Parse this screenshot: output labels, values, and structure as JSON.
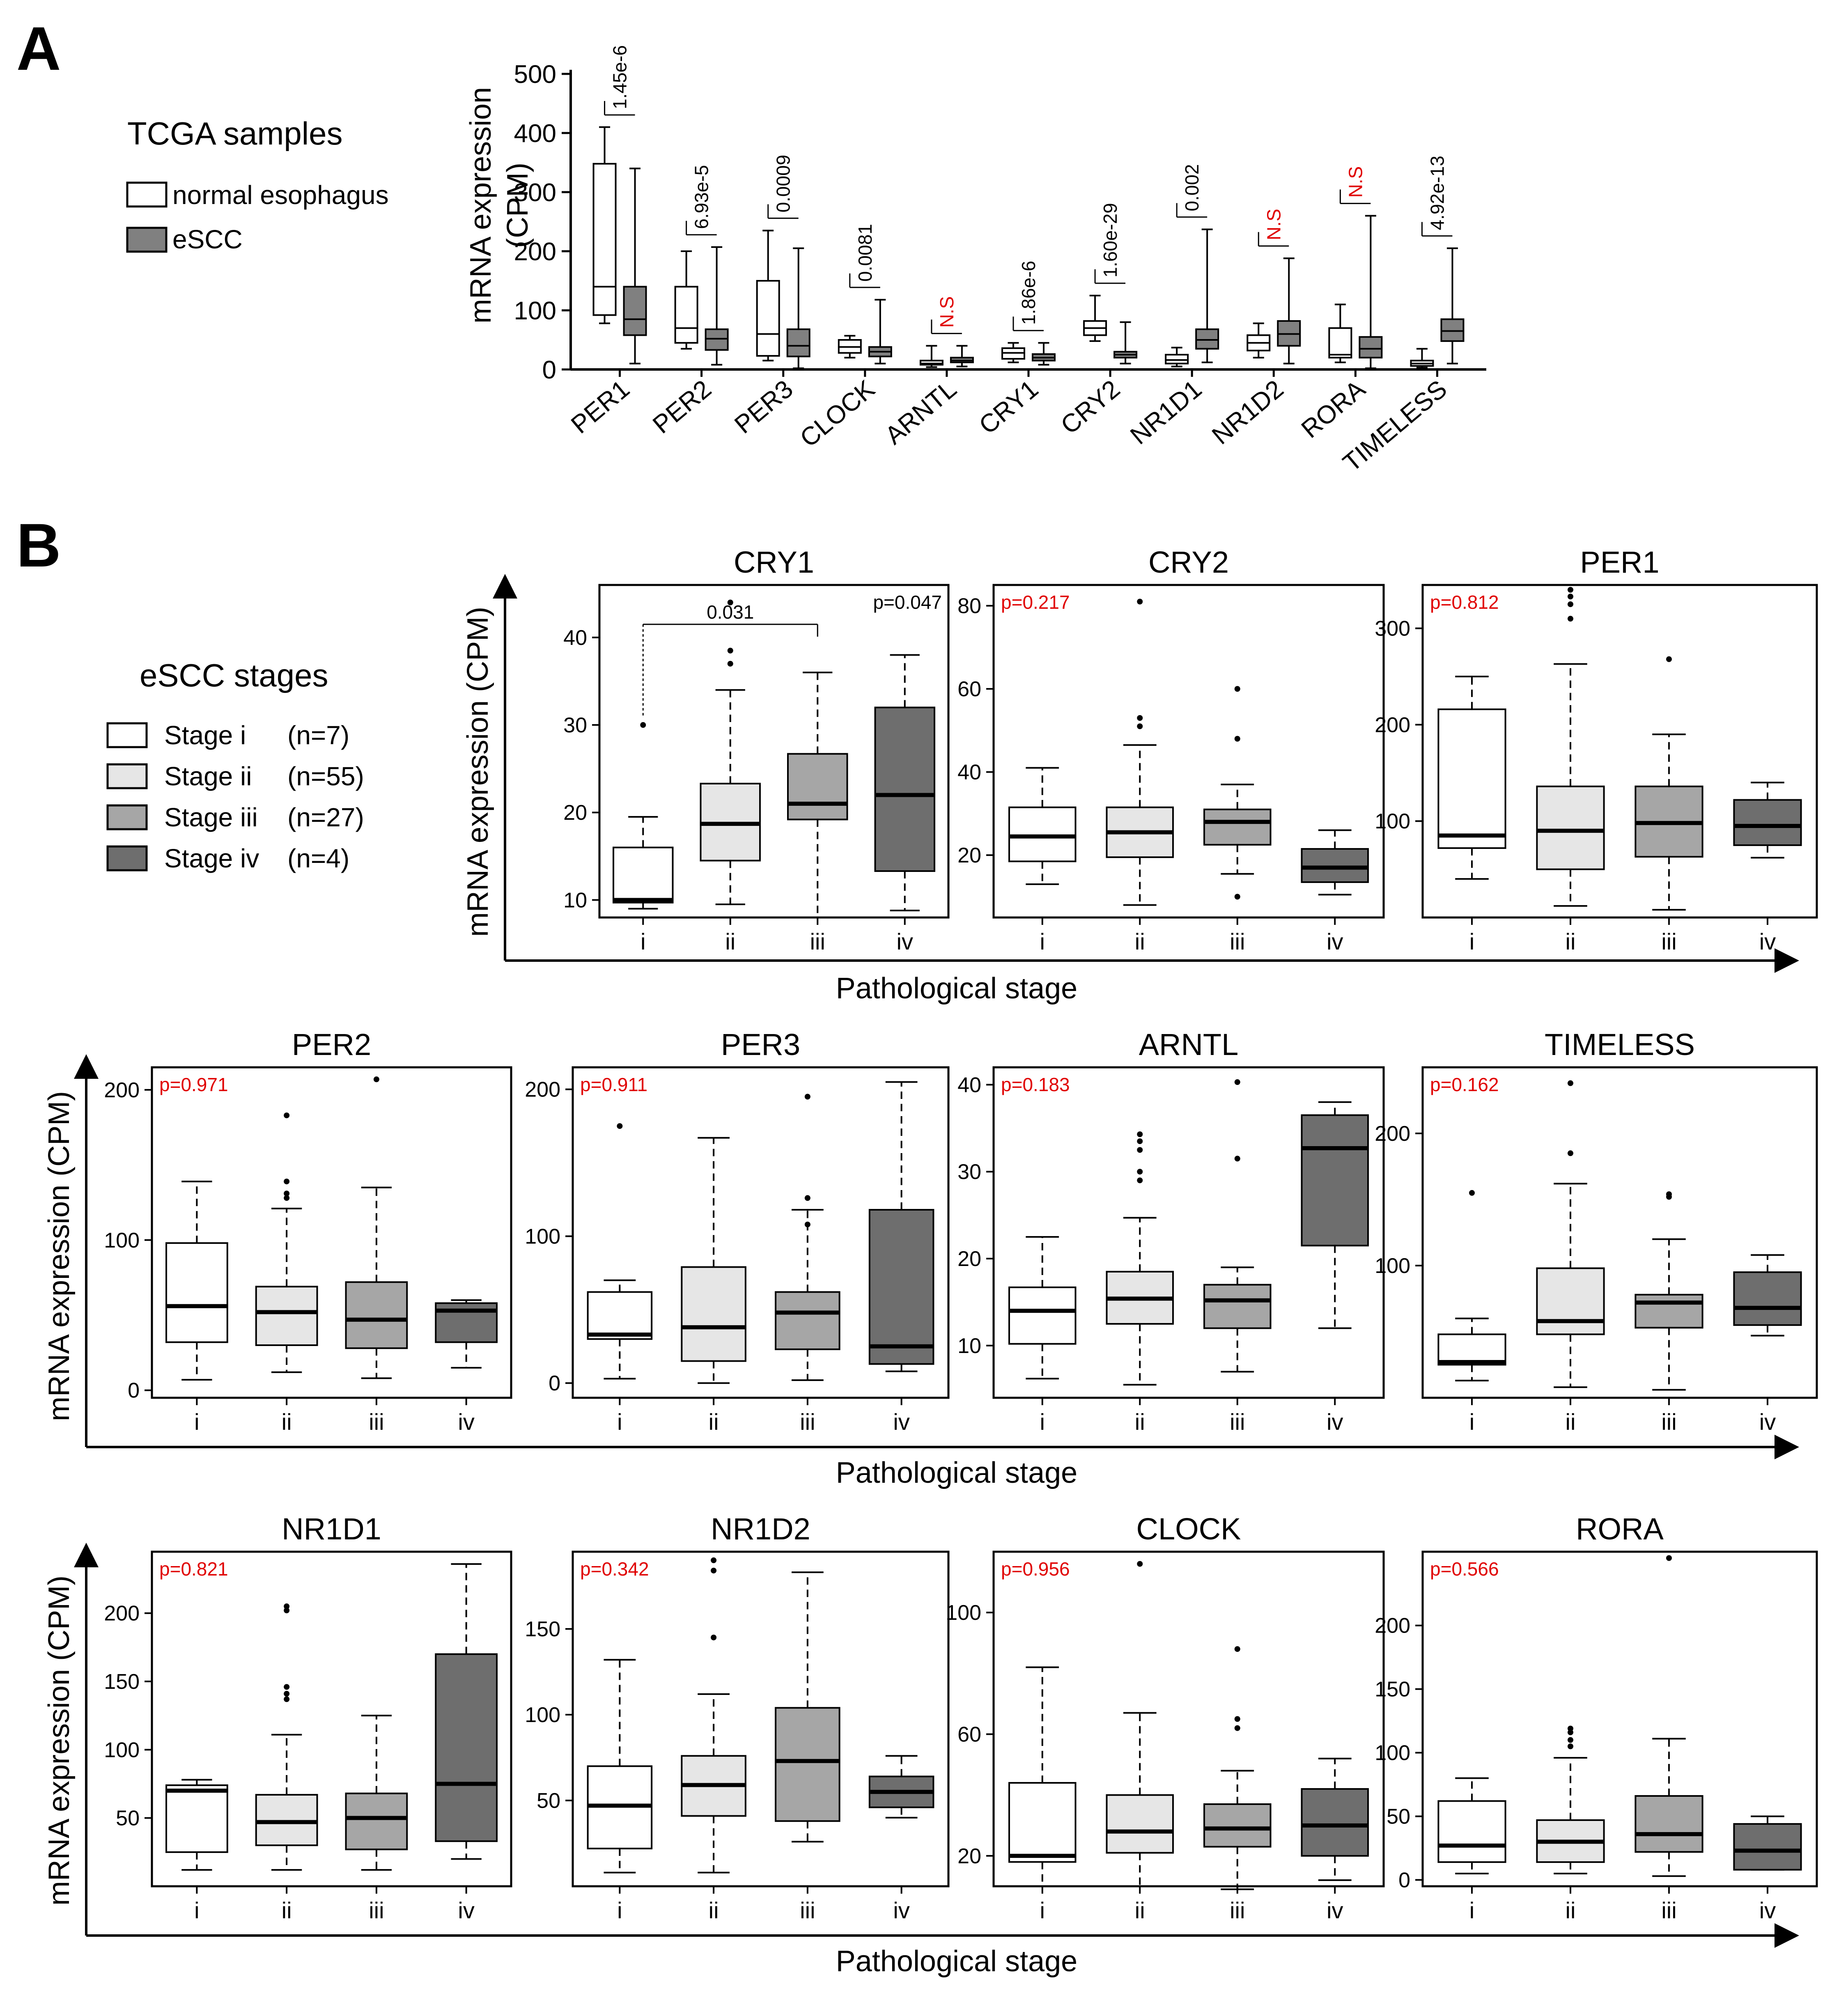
{
  "panels": {
    "A": {
      "letter": "A"
    },
    "B": {
      "letter": "B"
    }
  },
  "legend_a": {
    "title": "TCGA samples",
    "items": [
      {
        "label": "normal esophagus",
        "color": "#ffffff"
      },
      {
        "label": "eSCC",
        "color": "#808080"
      }
    ]
  },
  "legend_b": {
    "title": "eSCC stages",
    "items": [
      {
        "label": "Stage i",
        "n": "(n=7)",
        "color": "#ffffff"
      },
      {
        "label": "Stage ii",
        "n": "(n=55)",
        "color": "#e6e6e6"
      },
      {
        "label": "Stage iii",
        "n": "(n=27)",
        "color": "#a6a6a6"
      },
      {
        "label": "Stage iv",
        "n": "(n=4)",
        "color": "#6e6e6e"
      }
    ]
  },
  "colors": {
    "normal": "#ffffff",
    "escc": "#808080",
    "stage_i": "#ffffff",
    "stage_ii": "#e6e6e6",
    "stage_iii": "#a6a6a6",
    "stage_iv": "#6e6e6e",
    "significant": "#000000",
    "not_significant": "#e00000"
  },
  "axes_labels": {
    "a_ylabel_line1": "mRNA expression",
    "a_ylabel_line2": "(CPM)",
    "b_ylabel": "mRNA expression (CPM)",
    "b_xlabel": "Pathological stage"
  },
  "chart_data": [
    {
      "type": "box",
      "panel": "A",
      "ylabel": "mRNA expression (CPM)",
      "ylim": [
        0,
        500
      ],
      "yticks": [
        0,
        100,
        200,
        300,
        400,
        500
      ],
      "series": [
        {
          "name": "normal esophagus",
          "color": "#ffffff"
        },
        {
          "name": "eSCC",
          "color": "#808080"
        }
      ],
      "genes": [
        {
          "name": "PER1",
          "p": "1.45e-6",
          "sig": true,
          "normal": {
            "whislo": 78,
            "q1": 92,
            "med": 140,
            "q3": 348,
            "whishi": 410
          },
          "escc": {
            "whislo": 10,
            "q1": 58,
            "med": 85,
            "q3": 140,
            "whishi": 340
          }
        },
        {
          "name": "PER2",
          "p": "6.93e-5",
          "sig": true,
          "normal": {
            "whislo": 35,
            "q1": 45,
            "med": 70,
            "q3": 140,
            "whishi": 200
          },
          "escc": {
            "whislo": 8,
            "q1": 33,
            "med": 52,
            "q3": 68,
            "whishi": 207
          }
        },
        {
          "name": "PER3",
          "p": "0.0009",
          "sig": true,
          "normal": {
            "whislo": 15,
            "q1": 23,
            "med": 60,
            "q3": 150,
            "whishi": 235
          },
          "escc": {
            "whislo": 2,
            "q1": 22,
            "med": 40,
            "q3": 68,
            "whishi": 205
          }
        },
        {
          "name": "CLOCK",
          "p": "0.0081",
          "sig": true,
          "normal": {
            "whislo": 20,
            "q1": 28,
            "med": 38,
            "q3": 50,
            "whishi": 57
          },
          "escc": {
            "whislo": 10,
            "q1": 22,
            "med": 30,
            "q3": 38,
            "whishi": 118
          }
        },
        {
          "name": "ARNTL",
          "p": "N.S",
          "sig": false,
          "normal": {
            "whislo": 4,
            "q1": 8,
            "med": 10,
            "q3": 15,
            "whishi": 40
          },
          "escc": {
            "whislo": 5,
            "q1": 12,
            "med": 15,
            "q3": 20,
            "whishi": 40
          }
        },
        {
          "name": "CRY1",
          "p": "1.86e-6",
          "sig": true,
          "normal": {
            "whislo": 12,
            "q1": 18,
            "med": 28,
            "q3": 36,
            "whishi": 45
          },
          "escc": {
            "whislo": 8,
            "q1": 15,
            "med": 20,
            "q3": 26,
            "whishi": 45
          }
        },
        {
          "name": "CRY2",
          "p": "1.60e-29",
          "sig": true,
          "normal": {
            "whislo": 48,
            "q1": 58,
            "med": 70,
            "q3": 82,
            "whishi": 125
          },
          "escc": {
            "whislo": 10,
            "q1": 20,
            "med": 25,
            "q3": 30,
            "whishi": 80
          }
        },
        {
          "name": "NR1D1",
          "p": "0.002",
          "sig": true,
          "normal": {
            "whislo": 5,
            "q1": 10,
            "med": 16,
            "q3": 25,
            "whishi": 37
          },
          "escc": {
            "whislo": 12,
            "q1": 35,
            "med": 50,
            "q3": 68,
            "whishi": 237
          }
        },
        {
          "name": "NR1D2",
          "p": "N.S",
          "sig": false,
          "normal": {
            "whislo": 20,
            "q1": 32,
            "med": 45,
            "q3": 58,
            "whishi": 78
          },
          "escc": {
            "whislo": 10,
            "q1": 40,
            "med": 60,
            "q3": 82,
            "whishi": 188
          }
        },
        {
          "name": "RORA",
          "p": "N.S",
          "sig": false,
          "normal": {
            "whislo": 12,
            "q1": 20,
            "med": 25,
            "q3": 70,
            "whishi": 110
          },
          "escc": {
            "whislo": 2,
            "q1": 20,
            "med": 35,
            "q3": 55,
            "whishi": 260
          }
        },
        {
          "name": "TIMELESS",
          "p": "4.92e-13",
          "sig": true,
          "normal": {
            "whislo": 3,
            "q1": 6,
            "med": 10,
            "q3": 15,
            "whishi": 35
          },
          "escc": {
            "whislo": 10,
            "q1": 48,
            "med": 65,
            "q3": 85,
            "whishi": 205
          }
        }
      ]
    },
    {
      "type": "box",
      "panel": "B",
      "xlabel": "Pathological stage",
      "ylabel": "mRNA expression (CPM)",
      "categories": [
        "i",
        "ii",
        "iii",
        "iv"
      ],
      "subplots": [
        {
          "title": "CRY1",
          "p": "p=0.047",
          "sig": true,
          "ylim": [
            8,
            46
          ],
          "yticks": [
            10,
            20,
            30,
            40
          ],
          "bracket": {
            "from": "i",
            "to": "iii",
            "label": "0.031",
            "y": 41.5
          },
          "boxes": [
            {
              "whislo": 9,
              "q1": 9.7,
              "med": 10,
              "q3": 16,
              "whishi": 19.5,
              "fliers": [
                30
              ]
            },
            {
              "whislo": 9.5,
              "q1": 14.5,
              "med": 18.7,
              "q3": 23.3,
              "whishi": 34,
              "fliers": [
                37,
                38.5,
                44
              ]
            },
            {
              "whislo": 8,
              "q1": 19.2,
              "med": 21,
              "q3": 26.7,
              "whishi": 36,
              "fliers": []
            },
            {
              "whislo": 8.8,
              "q1": 13.3,
              "med": 22,
              "q3": 32,
              "whishi": 38,
              "fliers": []
            }
          ]
        },
        {
          "title": "CRY2",
          "p": "p=0.217",
          "sig": false,
          "ylim": [
            5,
            85
          ],
          "yticks": [
            20,
            40,
            60,
            80
          ],
          "boxes": [
            {
              "whislo": 13,
              "q1": 18.5,
              "med": 24.5,
              "q3": 31.5,
              "whishi": 41,
              "fliers": []
            },
            {
              "whislo": 8,
              "q1": 19.5,
              "med": 25.5,
              "q3": 31.5,
              "whishi": 46.5,
              "fliers": [
                51,
                53,
                81
              ]
            },
            {
              "whislo": 15.5,
              "q1": 22.5,
              "med": 28,
              "q3": 31,
              "whishi": 37,
              "fliers": [
                10,
                48,
                60
              ]
            },
            {
              "whislo": 10.5,
              "q1": 13.5,
              "med": 17,
              "q3": 21.5,
              "whishi": 26,
              "fliers": []
            }
          ]
        },
        {
          "title": "PER1",
          "p": "p=0.812",
          "sig": false,
          "ylim": [
            0,
            345
          ],
          "yticks": [
            100,
            200,
            300
          ],
          "boxes": [
            {
              "whislo": 40,
              "q1": 72,
              "med": 85,
              "q3": 216,
              "whishi": 250,
              "fliers": []
            },
            {
              "whislo": 12,
              "q1": 50,
              "med": 90,
              "q3": 136,
              "whishi": 263,
              "fliers": [
                310,
                325,
                333,
                340
              ]
            },
            {
              "whislo": 8,
              "q1": 63,
              "med": 98,
              "q3": 136,
              "whishi": 190,
              "fliers": [
                268
              ]
            },
            {
              "whislo": 62,
              "q1": 75,
              "med": 95,
              "q3": 122,
              "whishi": 140,
              "fliers": []
            }
          ]
        },
        {
          "title": "PER2",
          "p": "p=0.971",
          "sig": false,
          "ylim": [
            -5,
            215
          ],
          "yticks": [
            0,
            100,
            200
          ],
          "boxes": [
            {
              "whislo": 7,
              "q1": 32,
              "med": 56,
              "q3": 98,
              "whishi": 139,
              "fliers": []
            },
            {
              "whislo": 12,
              "q1": 30,
              "med": 52,
              "q3": 69,
              "whishi": 121,
              "fliers": [
                128,
                131,
                139,
                183
              ]
            },
            {
              "whislo": 8,
              "q1": 28,
              "med": 47,
              "q3": 72,
              "whishi": 135,
              "fliers": [
                207
              ]
            },
            {
              "whislo": 15,
              "q1": 32,
              "med": 53,
              "q3": 58,
              "whishi": 60,
              "fliers": []
            }
          ]
        },
        {
          "title": "PER3",
          "p": "p=0.911",
          "sig": false,
          "ylim": [
            -10,
            215
          ],
          "yticks": [
            0,
            100,
            200
          ],
          "boxes": [
            {
              "whislo": 3,
              "q1": 30,
              "med": 33,
              "q3": 62,
              "whishi": 70,
              "fliers": [
                175
              ]
            },
            {
              "whislo": 0,
              "q1": 15,
              "med": 38,
              "q3": 79,
              "whishi": 167,
              "fliers": []
            },
            {
              "whislo": 2,
              "q1": 23,
              "med": 48,
              "q3": 62,
              "whishi": 118,
              "fliers": [
                108,
                126,
                195
              ]
            },
            {
              "whislo": 8,
              "q1": 13,
              "med": 25,
              "q3": 118,
              "whishi": 205,
              "fliers": []
            }
          ]
        },
        {
          "title": "ARNTL",
          "p": "p=0.183",
          "sig": false,
          "ylim": [
            4,
            42
          ],
          "yticks": [
            10,
            20,
            30,
            40
          ],
          "boxes": [
            {
              "whislo": 6.2,
              "q1": 10.2,
              "med": 14,
              "q3": 16.7,
              "whishi": 22.5,
              "fliers": []
            },
            {
              "whislo": 5.5,
              "q1": 12.5,
              "med": 15.4,
              "q3": 18.5,
              "whishi": 24.7,
              "fliers": [
                29,
                30,
                32.5,
                33.5,
                34.3
              ]
            },
            {
              "whislo": 7,
              "q1": 12,
              "med": 15.2,
              "q3": 17,
              "whishi": 19,
              "fliers": [
                31.5,
                40.3
              ]
            },
            {
              "whislo": 12,
              "q1": 21.5,
              "med": 32.7,
              "q3": 36.5,
              "whishi": 38,
              "fliers": []
            }
          ]
        },
        {
          "title": "TIMELESS",
          "p": "p=0.162",
          "sig": false,
          "ylim": [
            0,
            250
          ],
          "yticks": [
            100,
            200
          ],
          "boxes": [
            {
              "whislo": 13,
              "q1": 25,
              "med": 27,
              "q3": 48,
              "whishi": 60,
              "fliers": [
                155
              ]
            },
            {
              "whislo": 8,
              "q1": 48,
              "med": 58,
              "q3": 98,
              "whishi": 162,
              "fliers": [
                185,
                238
              ]
            },
            {
              "whislo": 6,
              "q1": 53,
              "med": 72,
              "q3": 78,
              "whishi": 120,
              "fliers": [
                152,
                154
              ]
            },
            {
              "whislo": 47,
              "q1": 55,
              "med": 68,
              "q3": 95,
              "whishi": 108,
              "fliers": []
            }
          ]
        },
        {
          "title": "NR1D1",
          "p": "p=0.821",
          "sig": false,
          "ylim": [
            0,
            245
          ],
          "yticks": [
            50,
            100,
            150,
            200
          ],
          "boxes": [
            {
              "whislo": 12,
              "q1": 25,
              "med": 70,
              "q3": 74,
              "whishi": 78,
              "fliers": []
            },
            {
              "whislo": 12,
              "q1": 30,
              "med": 47,
              "q3": 67,
              "whishi": 111,
              "fliers": [
                137,
                141,
                146,
                202,
                205
              ]
            },
            {
              "whislo": 12,
              "q1": 27,
              "med": 50,
              "q3": 68,
              "whishi": 125,
              "fliers": []
            },
            {
              "whislo": 20,
              "q1": 33,
              "med": 75,
              "q3": 170,
              "whishi": 236,
              "fliers": []
            }
          ]
        },
        {
          "title": "NR1D2",
          "p": "p=0.342",
          "sig": false,
          "ylim": [
            0,
            195
          ],
          "yticks": [
            50,
            100,
            150
          ],
          "boxes": [
            {
              "whislo": 8,
              "q1": 22,
              "med": 47,
              "q3": 70,
              "whishi": 132,
              "fliers": []
            },
            {
              "whislo": 8,
              "q1": 41,
              "med": 59,
              "q3": 76,
              "whishi": 112,
              "fliers": [
                145,
                184,
                190
              ]
            },
            {
              "whislo": 26,
              "q1": 38,
              "med": 73,
              "q3": 104,
              "whishi": 183,
              "fliers": []
            },
            {
              "whislo": 40,
              "q1": 46,
              "med": 55,
              "q3": 64,
              "whishi": 76,
              "fliers": []
            }
          ]
        },
        {
          "title": "CLOCK",
          "p": "p=0.956",
          "sig": false,
          "ylim": [
            10,
            120
          ],
          "yticks": [
            20,
            60,
            100
          ],
          "boxes": [
            {
              "whislo": 10,
              "q1": 18,
              "med": 20,
              "q3": 44,
              "whishi": 82,
              "fliers": []
            },
            {
              "whislo": 10,
              "q1": 21,
              "med": 28,
              "q3": 40,
              "whishi": 67,
              "fliers": [
                116
              ]
            },
            {
              "whislo": 9,
              "q1": 23,
              "med": 29,
              "q3": 37,
              "whishi": 48,
              "fliers": [
                62,
                65,
                88
              ]
            },
            {
              "whislo": 12,
              "q1": 20,
              "med": 30,
              "q3": 42,
              "whishi": 52,
              "fliers": []
            }
          ]
        },
        {
          "title": "RORA",
          "p": "p=0.566",
          "sig": false,
          "ylim": [
            -5,
            258
          ],
          "yticks": [
            0,
            50,
            100,
            150,
            200
          ],
          "boxes": [
            {
              "whislo": 5,
              "q1": 14,
              "med": 27,
              "q3": 62,
              "whishi": 80,
              "fliers": []
            },
            {
              "whislo": 5,
              "q1": 14,
              "med": 30,
              "q3": 47,
              "whishi": 96,
              "fliers": [
                105,
                110,
                116,
                119
              ]
            },
            {
              "whislo": 3,
              "q1": 22,
              "med": 36,
              "q3": 66,
              "whishi": 111,
              "fliers": [
                253
              ]
            },
            {
              "whislo": 8,
              "q1": 8,
              "med": 23,
              "q3": 44,
              "whishi": 50,
              "fliers": []
            }
          ]
        }
      ]
    }
  ]
}
